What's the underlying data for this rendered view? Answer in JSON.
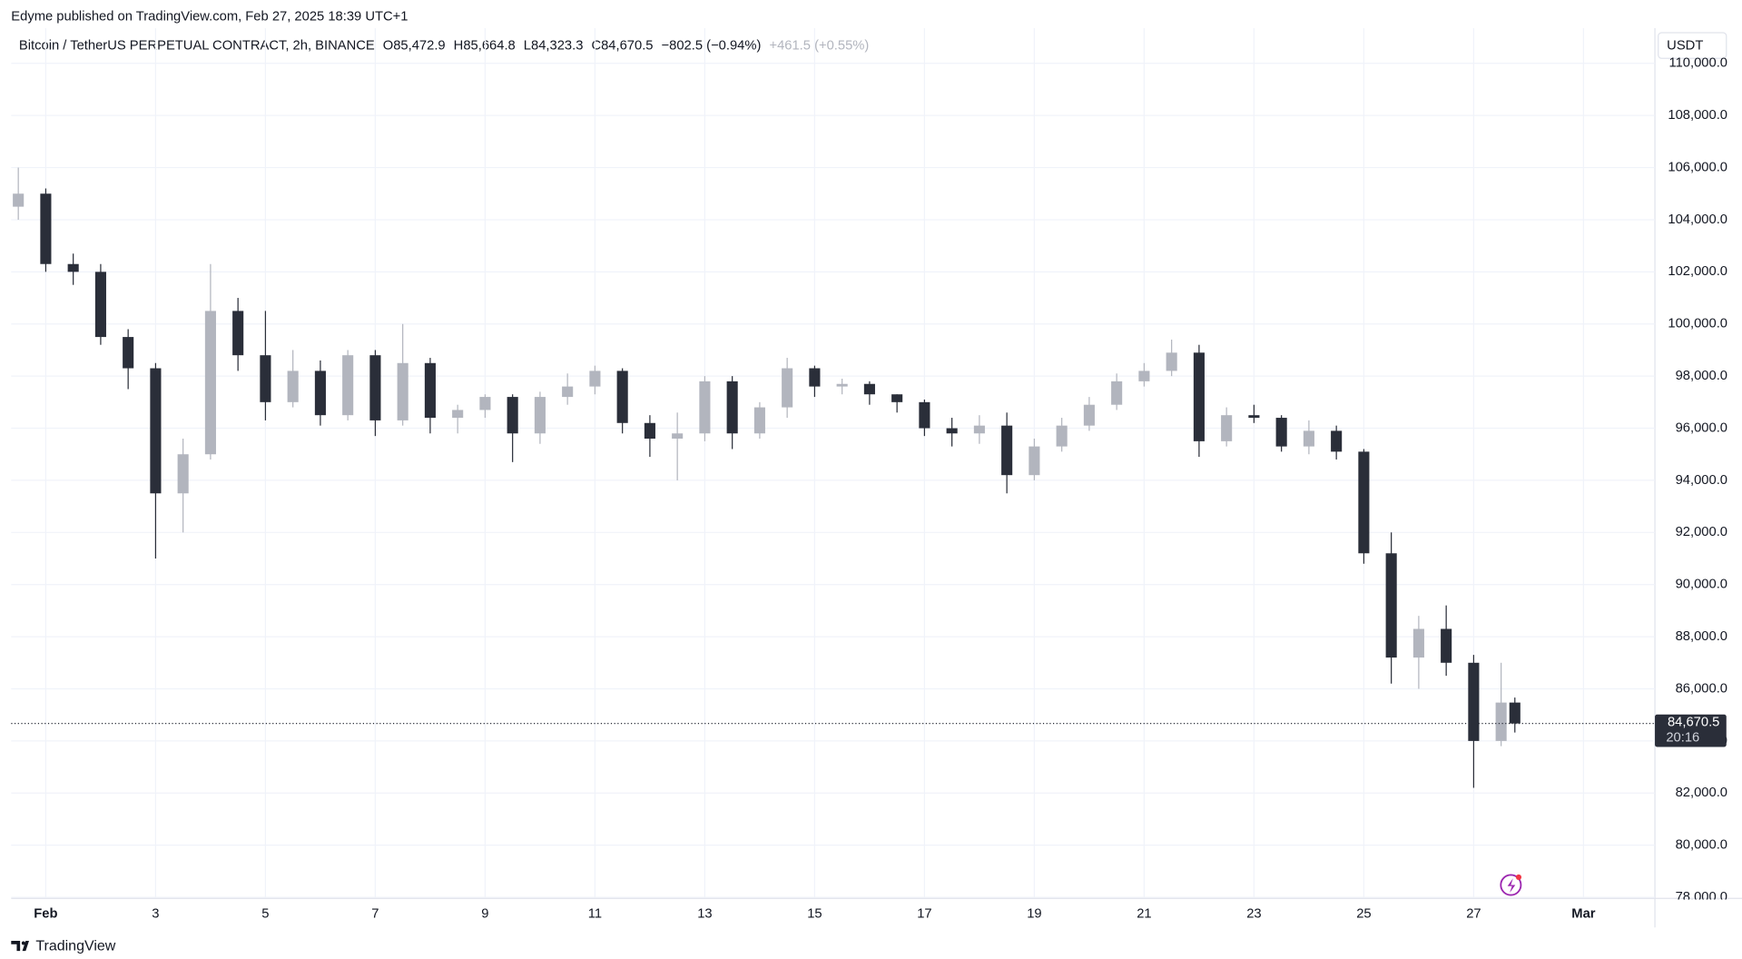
{
  "header": {
    "published": "Edyme published on TradingView.com, Feb 27, 2025 18:39 UTC+1"
  },
  "legend": {
    "symbol": "Bitcoin / TetherUS PERPETUAL CONTRACT, 2h, BINANCE",
    "open": "O85,472.9",
    "high": "H85,664.8",
    "low": "L84,323.3",
    "close": "C84,670.5",
    "change": "−802.5 (−0.94%)",
    "after": "+461.5 (+0.55%)"
  },
  "currency": "USDT",
  "footer": {
    "brand": "TradingView"
  },
  "chart_data": {
    "type": "candlestick",
    "up_color": "#b2b5be",
    "down_color": "#2a2e39",
    "grid": true,
    "x": [
      0.5,
      1.0,
      1.5,
      2.0,
      2.5,
      3.0,
      3.5,
      4.0,
      4.5,
      5.0,
      5.5,
      6.0,
      6.5,
      7.0,
      7.5,
      8.0,
      8.5,
      9.0,
      9.5,
      10.0,
      10.5,
      11.0,
      11.5,
      12.0,
      12.5,
      13.0,
      13.5,
      14.0,
      14.5,
      15.0,
      15.5,
      16.0,
      16.5,
      17.0,
      17.5,
      18.0,
      18.5,
      19.0,
      19.5,
      20.0,
      20.5,
      21.0,
      21.5,
      22.0,
      22.5,
      23.0,
      23.5,
      24.0,
      24.5,
      25.0,
      25.5,
      26.0,
      26.5,
      27.0,
      27.5,
      27.75
    ],
    "open": [
      104500,
      105000,
      102300,
      102000,
      99500,
      98300,
      93500,
      95000,
      100500,
      98800,
      97000,
      98200,
      96500,
      98800,
      96300,
      98500,
      96400,
      96700,
      97200,
      95800,
      97200,
      97600,
      98200,
      96200,
      95600,
      95800,
      97800,
      95800,
      96800,
      98300,
      97600,
      97700,
      97300,
      97000,
      96000,
      95800,
      96100,
      94200,
      95300,
      96100,
      96900,
      97800,
      98200,
      98900,
      95500,
      96500,
      96400,
      95300,
      95900,
      95100,
      91200,
      87200,
      88300,
      87000,
      84000,
      85472.9
    ],
    "high": [
      106000,
      105200,
      102700,
      102300,
      99800,
      98500,
      95600,
      102300,
      101000,
      100500,
      99000,
      98600,
      99000,
      99000,
      100000,
      98700,
      96900,
      97300,
      97300,
      97400,
      98100,
      98400,
      98300,
      96500,
      96600,
      98000,
      98000,
      97000,
      98700,
      98400,
      97900,
      97800,
      97300,
      97100,
      96400,
      96500,
      96600,
      95600,
      96400,
      97200,
      98100,
      98500,
      99400,
      99200,
      96800,
      96900,
      96500,
      96300,
      96100,
      95200,
      92000,
      88800,
      89200,
      87300,
      87000,
      85664.8
    ],
    "low": [
      104000,
      102000,
      101500,
      99200,
      97500,
      91000,
      92000,
      94800,
      98200,
      96300,
      96800,
      96100,
      96300,
      95700,
      96100,
      95800,
      95800,
      96400,
      94700,
      95400,
      96900,
      97300,
      95800,
      94900,
      94000,
      95500,
      95200,
      95600,
      96400,
      97200,
      97300,
      96900,
      96600,
      95700,
      95300,
      95400,
      93500,
      94000,
      95100,
      95900,
      96700,
      97600,
      98000,
      94900,
      95300,
      96200,
      95100,
      95000,
      94800,
      90800,
      86200,
      86000,
      86500,
      82200,
      83800,
      84323.3
    ],
    "close": [
      105000,
      102300,
      102000,
      99500,
      98300,
      93500,
      95000,
      100500,
      98800,
      97000,
      98200,
      96500,
      98800,
      96300,
      98500,
      96400,
      96700,
      97200,
      95800,
      97200,
      97600,
      98200,
      96200,
      95600,
      95800,
      97800,
      95800,
      96800,
      98300,
      97600,
      97700,
      97300,
      97000,
      96000,
      95800,
      96100,
      94200,
      95300,
      96100,
      96900,
      97800,
      98200,
      98900,
      95500,
      96500,
      96400,
      95300,
      95900,
      95100,
      91200,
      87200,
      88300,
      87000,
      84000,
      85472.9,
      84670.5
    ],
    "xlim": [
      0.37,
      30.3
    ],
    "xticks": [
      {
        "value": 1,
        "label": "Feb"
      },
      3,
      5,
      7,
      9,
      11,
      13,
      15,
      17,
      19,
      21,
      23,
      25,
      27,
      {
        "value": 29,
        "label": "Mar"
      }
    ],
    "ylim": [
      78000,
      111350
    ],
    "yticks": [
      {
        "value": 78000,
        "label": "78,000.0"
      },
      {
        "value": 80000,
        "label": "80,000.0"
      },
      {
        "value": 82000,
        "label": "82,000.0"
      },
      {
        "value": 84000,
        "label": "84,000.0"
      },
      {
        "value": 86000,
        "label": "86,000.0"
      },
      {
        "value": 88000,
        "label": "88,000.0"
      },
      {
        "value": 90000,
        "label": "90,000.0"
      },
      {
        "value": 92000,
        "label": "92,000.0"
      },
      {
        "value": 94000,
        "label": "94,000.0"
      },
      {
        "value": 96000,
        "label": "96,000.0"
      },
      {
        "value": 98000,
        "label": "98,000.0"
      },
      {
        "value": 100000,
        "label": "100,000.0"
      },
      {
        "value": 102000,
        "label": "102,000.0"
      },
      {
        "value": 104000,
        "label": "104,000.0"
      },
      {
        "value": 106000,
        "label": "106,000.0"
      },
      {
        "value": 108000,
        "label": "108,000.0"
      },
      {
        "value": 110000,
        "label": "110,000.0"
      }
    ],
    "last_price": {
      "value": 84670.5,
      "label": "84,670.5"
    },
    "countdown": "20:16"
  }
}
